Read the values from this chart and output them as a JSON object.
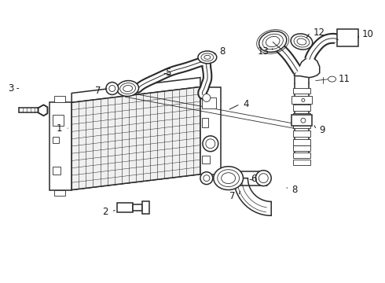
{
  "background_color": "#ffffff",
  "line_color": "#2a2a2a",
  "label_color": "#1a1a1a",
  "label_fontsize": 8.5,
  "fig_width": 4.9,
  "fig_height": 3.6,
  "dpi": 100
}
